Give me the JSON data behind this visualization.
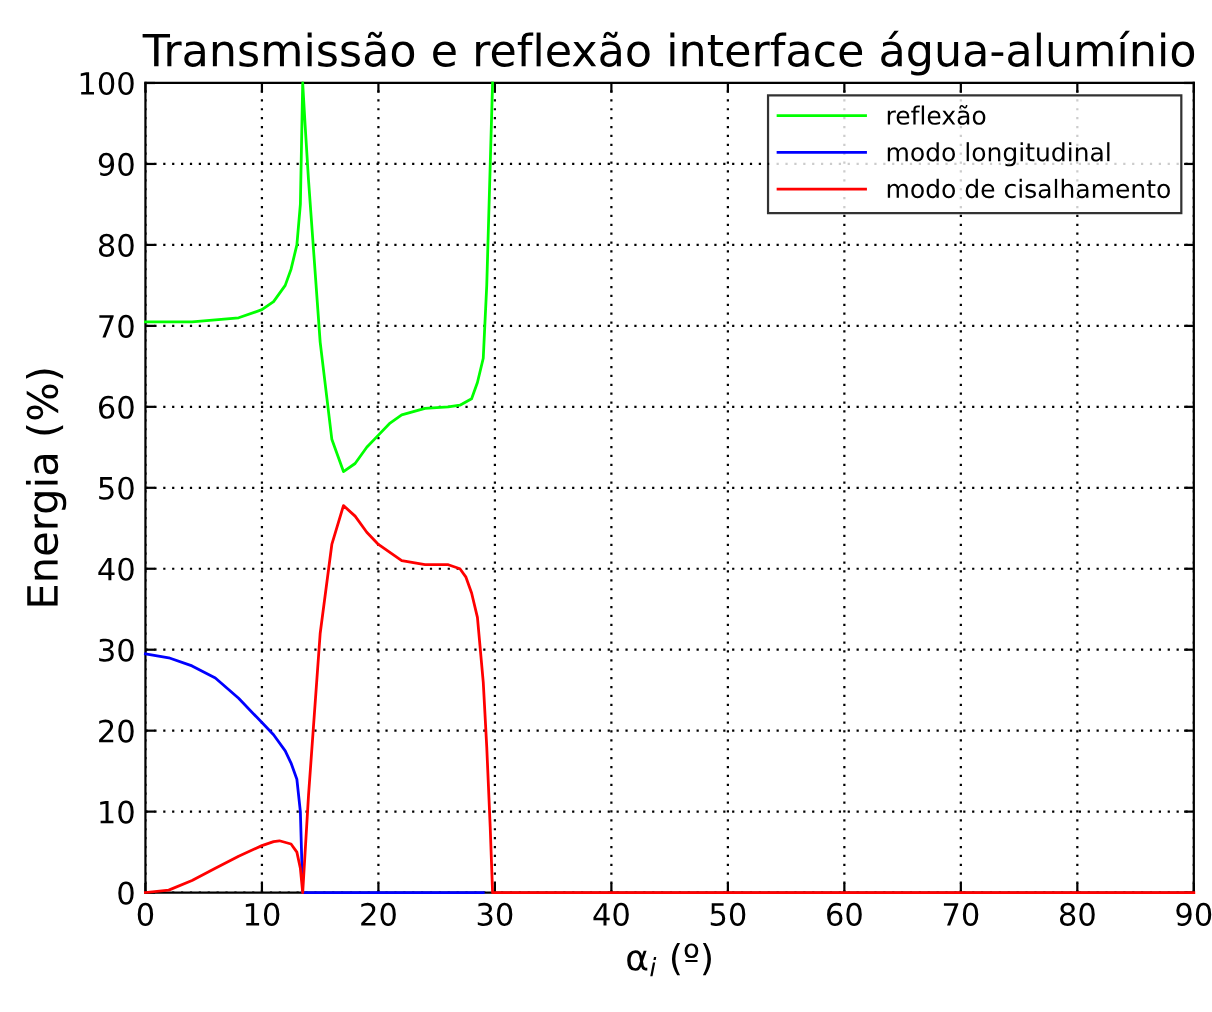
{
  "chart_data": {
    "type": "line",
    "title": "Transmissão e reflexão interface água-alumínio",
    "xlabel": "α$_{i}$ (º)",
    "ylabel": "Energia (%)",
    "xlim": [
      0,
      90
    ],
    "ylim": [
      0,
      100
    ],
    "xticks": [
      0,
      10,
      20,
      30,
      40,
      50,
      60,
      70,
      80,
      90
    ],
    "yticks": [
      0,
      10,
      20,
      30,
      40,
      50,
      60,
      70,
      80,
      90,
      100
    ],
    "grid": true,
    "legend": "top right",
    "marker": "none",
    "line_style": "solid",
    "series": [
      {
        "name": "reflexão",
        "color": "#00ff00",
        "x": [
          0,
          4,
          8,
          10,
          11,
          12,
          12.5,
          13,
          13.3,
          13.5,
          13.7,
          14,
          15,
          16,
          17,
          18,
          19,
          20,
          21,
          22,
          24,
          26,
          27,
          28,
          28.5,
          29,
          29.3,
          29.6,
          29.8
        ],
        "values": [
          70.5,
          70.5,
          71,
          72,
          73,
          75,
          77,
          80,
          85,
          100,
          95,
          88,
          68,
          56,
          52,
          53,
          55,
          56.5,
          58,
          59,
          59.8,
          60,
          60.2,
          61,
          63,
          66,
          75,
          90,
          100
        ]
      },
      {
        "name": "modo longitudinal",
        "color": "#0000ff",
        "x": [
          0,
          2,
          4,
          6,
          8,
          10,
          11,
          12,
          12.5,
          13,
          13.3,
          13.5,
          14,
          20,
          29
        ],
        "values": [
          29.5,
          29,
          28,
          26.5,
          24,
          21,
          19.5,
          17.5,
          16,
          14,
          10,
          0,
          0,
          0,
          0
        ]
      },
      {
        "name": "modo de cisalhamento",
        "color": "#ff0000",
        "x": [
          0,
          2,
          4,
          6,
          8,
          10,
          11,
          11.5,
          12.5,
          13,
          13.3,
          13.5,
          14,
          14.5,
          15,
          16,
          17,
          18,
          19,
          20,
          22,
          24,
          26,
          27,
          27.5,
          28,
          28.5,
          29,
          29.3,
          29.6,
          29.8,
          30,
          40,
          50,
          60,
          70,
          80,
          90
        ],
        "values": [
          0,
          0.3,
          1.5,
          3,
          4.5,
          5.8,
          6.3,
          6.4,
          6,
          5,
          3,
          0,
          12,
          22,
          32,
          43,
          47.8,
          46.5,
          44.5,
          43,
          41,
          40.5,
          40.5,
          40,
          39,
          37,
          34,
          26,
          18,
          8,
          0,
          0,
          0,
          0,
          0,
          0,
          0,
          0
        ]
      }
    ]
  }
}
